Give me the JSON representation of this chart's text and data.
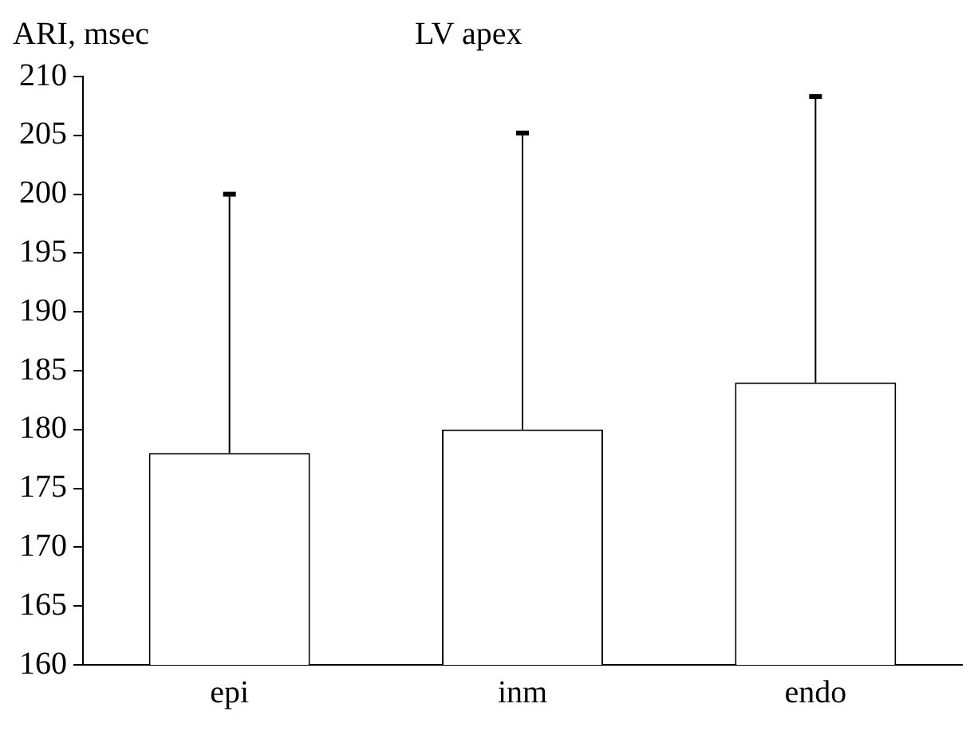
{
  "chart_data": {
    "type": "bar",
    "title": "LV apex",
    "ylabel": "ARI, msec",
    "categories": [
      "epi",
      "inm",
      "endo"
    ],
    "values": [
      178,
      180,
      184
    ],
    "errors": [
      [
        178,
        200
      ],
      [
        180,
        205.2
      ],
      [
        184,
        208.3
      ]
    ],
    "color": "#ffffff",
    "ylim": [
      160,
      210
    ],
    "yticks": [
      160,
      165,
      170,
      175,
      180,
      185,
      190,
      195,
      200,
      205,
      210
    ],
    "grid": false,
    "legend": false
  }
}
